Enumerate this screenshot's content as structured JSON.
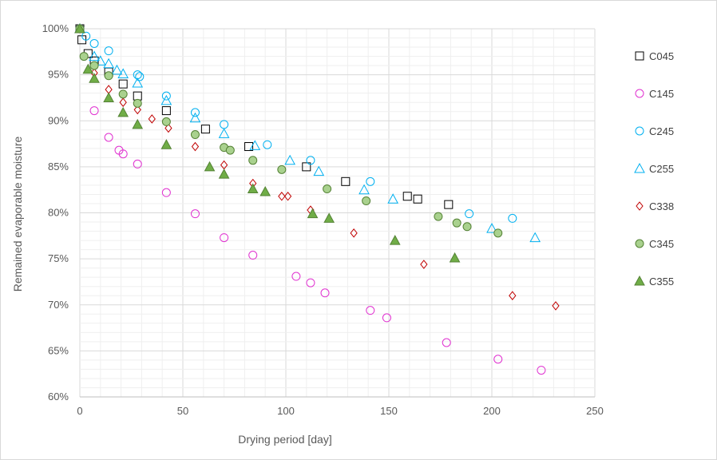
{
  "chart_data": {
    "type": "scatter",
    "title": "",
    "xlabel": "Drying period [day]",
    "ylabel": "Remained evaporable moisture",
    "xlim": [
      0,
      250
    ],
    "ylim": [
      60,
      100
    ],
    "x_ticks": [
      0,
      50,
      100,
      150,
      200,
      250
    ],
    "y_ticks": [
      60,
      65,
      70,
      75,
      80,
      85,
      90,
      95,
      100
    ],
    "y_tick_labels": [
      "60%",
      "65%",
      "70%",
      "75%",
      "80%",
      "85%",
      "90%",
      "95%",
      "100%"
    ],
    "grid": "major and minor gridlines",
    "legend_position": "right",
    "series": [
      {
        "name": "C045",
        "marker": "square",
        "color": "#000000",
        "fill": "none",
        "points": [
          [
            0,
            100
          ],
          [
            1,
            98.8
          ],
          [
            4,
            97.3
          ],
          [
            7,
            96.5
          ],
          [
            14,
            95.3
          ],
          [
            21,
            94
          ],
          [
            28,
            92.7
          ],
          [
            42,
            91.1
          ],
          [
            61,
            89.1
          ],
          [
            82,
            87.2
          ],
          [
            110,
            85
          ],
          [
            129,
            83.4
          ],
          [
            159,
            81.8
          ],
          [
            164,
            81.5
          ],
          [
            179,
            80.9
          ]
        ]
      },
      {
        "name": "C145",
        "marker": "circle",
        "color": "#e030d0",
        "fill": "none",
        "points": [
          [
            0,
            100
          ],
          [
            7,
            91.1
          ],
          [
            14,
            88.2
          ],
          [
            19,
            86.8
          ],
          [
            21,
            86.4
          ],
          [
            28,
            85.3
          ],
          [
            42,
            82.2
          ],
          [
            56,
            79.9
          ],
          [
            70,
            77.3
          ],
          [
            84,
            75.4
          ],
          [
            105,
            73.1
          ],
          [
            112,
            72.4
          ],
          [
            119,
            71.3
          ],
          [
            141,
            69.4
          ],
          [
            149,
            68.6
          ],
          [
            178,
            65.9
          ],
          [
            203,
            64.1
          ],
          [
            224,
            62.9
          ]
        ]
      },
      {
        "name": "C245",
        "marker": "circle",
        "color": "#00b0f0",
        "fill": "none",
        "points": [
          [
            0,
            100
          ],
          [
            3,
            99.2
          ],
          [
            7,
            98.4
          ],
          [
            14,
            97.6
          ],
          [
            28,
            95
          ],
          [
            29,
            94.8
          ],
          [
            42,
            92.7
          ],
          [
            56,
            90.9
          ],
          [
            70,
            89.6
          ],
          [
            91,
            87.4
          ],
          [
            112,
            85.7
          ],
          [
            141,
            83.4
          ],
          [
            189,
            79.9
          ],
          [
            210,
            79.4
          ]
        ]
      },
      {
        "name": "C255",
        "marker": "triangle",
        "color": "#00b0f0",
        "fill": "none",
        "points": [
          [
            0,
            100
          ],
          [
            7,
            97
          ],
          [
            10,
            96.5
          ],
          [
            14,
            96.2
          ],
          [
            18,
            95.5
          ],
          [
            21,
            95.1
          ],
          [
            28,
            94.1
          ],
          [
            42,
            92.2
          ],
          [
            56,
            90.3
          ],
          [
            70,
            88.6
          ],
          [
            85,
            87.3
          ],
          [
            102,
            85.7
          ],
          [
            116,
            84.5
          ],
          [
            138,
            82.5
          ],
          [
            152,
            81.5
          ],
          [
            200,
            78.3
          ],
          [
            221,
            77.3
          ]
        ]
      },
      {
        "name": "C338",
        "marker": "diamond",
        "color": "#c00000",
        "fill": "none",
        "points": [
          [
            0,
            100
          ],
          [
            7,
            95.2
          ],
          [
            14,
            93.4
          ],
          [
            21,
            92
          ],
          [
            28,
            91.2
          ],
          [
            35,
            90.2
          ],
          [
            43,
            89.2
          ],
          [
            56,
            87.2
          ],
          [
            70,
            85.2
          ],
          [
            84,
            83.2
          ],
          [
            98,
            81.8
          ],
          [
            101,
            81.8
          ],
          [
            112,
            80.3
          ],
          [
            133,
            77.8
          ],
          [
            167,
            74.4
          ],
          [
            210,
            71
          ],
          [
            231,
            69.9
          ]
        ]
      },
      {
        "name": "C345",
        "marker": "circle",
        "color": "#548235",
        "fill": "#a9d18e",
        "points": [
          [
            0,
            100
          ],
          [
            2,
            97
          ],
          [
            7,
            96
          ],
          [
            14,
            94.9
          ],
          [
            21,
            92.9
          ],
          [
            28,
            91.9
          ],
          [
            42,
            89.9
          ],
          [
            56,
            88.5
          ],
          [
            70,
            87.1
          ],
          [
            73,
            86.8
          ],
          [
            84,
            85.7
          ],
          [
            98,
            84.7
          ],
          [
            120,
            82.6
          ],
          [
            139,
            81.3
          ],
          [
            174,
            79.6
          ],
          [
            183,
            78.9
          ],
          [
            188,
            78.5
          ],
          [
            203,
            77.8
          ]
        ]
      },
      {
        "name": "C355",
        "marker": "triangle",
        "color": "#548235",
        "fill": "#70ad47",
        "points": [
          [
            0,
            100
          ],
          [
            4,
            95.6
          ],
          [
            7,
            94.6
          ],
          [
            14,
            92.5
          ],
          [
            21,
            90.9
          ],
          [
            28,
            89.6
          ],
          [
            42,
            87.4
          ],
          [
            63,
            85
          ],
          [
            70,
            84.2
          ],
          [
            84,
            82.6
          ],
          [
            90,
            82.3
          ],
          [
            113,
            79.9
          ],
          [
            121,
            79.4
          ],
          [
            153,
            77
          ],
          [
            182,
            75.1
          ]
        ]
      }
    ]
  }
}
